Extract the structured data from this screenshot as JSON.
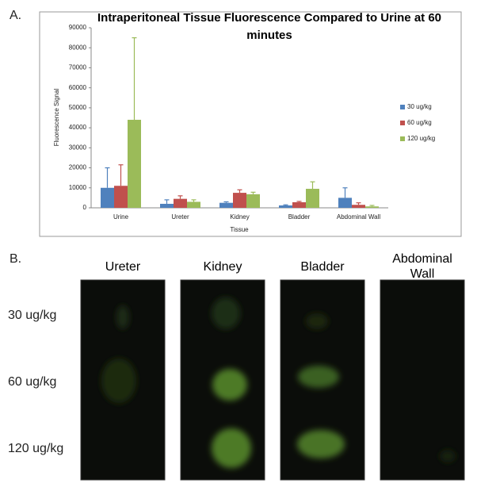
{
  "chart_data": {
    "type": "bar",
    "panel_label": "A.",
    "title": "Intraperitoneal Tissue Fluorescence Compared to Urine at 60 minutes",
    "x_label": "Tissue",
    "y_label": "Fluorescence Signal",
    "categories": [
      "Urine",
      "Ureter",
      "Kidney",
      "Bladder",
      "Abdominal Wall"
    ],
    "series": [
      {
        "name": "30 ug/kg",
        "color": "#4f81bd",
        "values": [
          10000,
          2000,
          2500,
          1200,
          5000
        ],
        "errors": [
          10000,
          2000,
          500,
          300,
          5000
        ]
      },
      {
        "name": "60 ug/kg",
        "color": "#c0504d",
        "values": [
          11000,
          4500,
          7500,
          2800,
          1500
        ],
        "errors": [
          10500,
          1500,
          1500,
          400,
          1000
        ]
      },
      {
        "name": "120 ug/kg",
        "color": "#9bbb59",
        "values": [
          44000,
          3000,
          6800,
          9500,
          700
        ],
        "errors": [
          41000,
          1000,
          1000,
          3500,
          500
        ]
      }
    ],
    "ylim": [
      0,
      90000
    ],
    "yticks": [
      0,
      10000,
      20000,
      30000,
      40000,
      50000,
      60000,
      70000,
      80000,
      90000
    ]
  },
  "image_panel": {
    "panel_label": "B.",
    "columns": [
      "Ureter",
      "Kidney",
      "Bladder",
      "Abdominal Wall"
    ],
    "rows": [
      "30 ug/kg",
      "60 ug/kg",
      "120 ug/kg"
    ]
  }
}
